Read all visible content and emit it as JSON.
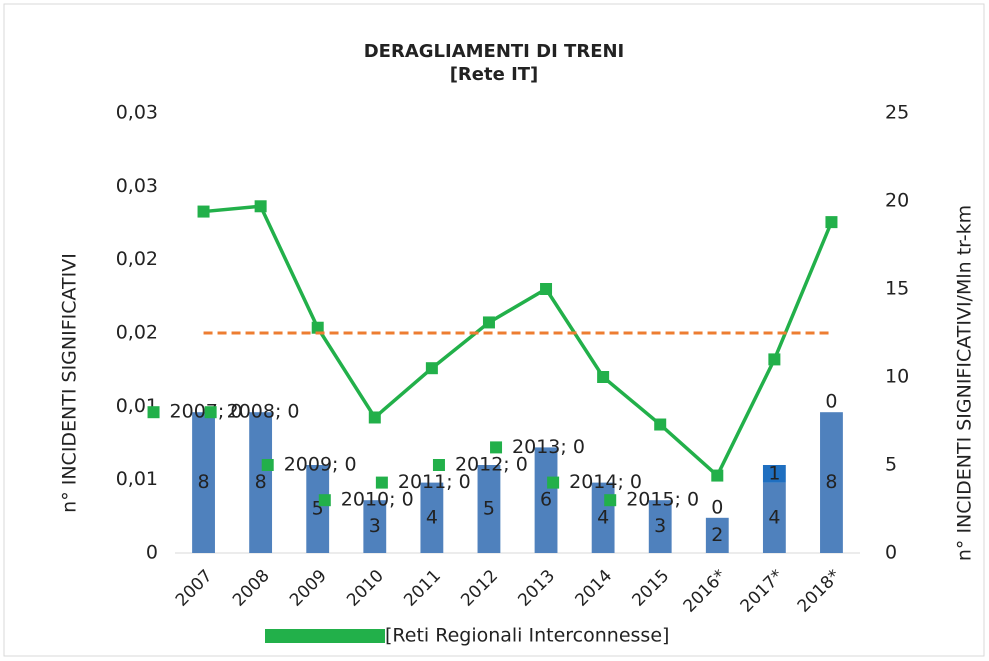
{
  "chart_data": {
    "type": "bar",
    "title": "DERAGLIAMENTI DI TRENI",
    "subtitle": "[Rete IT]",
    "ylabel": "n° INCIDENTI SIGNIFICATIVI",
    "y2label": "n° INCIDENTI SIGNIFICATIVI/Mln tr-km",
    "categories": [
      "2007",
      "2008",
      "2009",
      "2010",
      "2011",
      "2012",
      "2013",
      "2014",
      "2015",
      "2016*",
      "2017*",
      "2018*"
    ],
    "ylim": [
      0,
      0.03
    ],
    "yticks": [
      0,
      {
        "value": 0.005,
        "label": "0,01"
      },
      {
        "value": 0.01,
        "label": "0,01"
      },
      {
        "value": 0.015,
        "label": "0,02"
      },
      {
        "value": 0.02,
        "label": "0,02"
      },
      {
        "value": 0.025,
        "label": "0,03"
      },
      {
        "value": 0.03,
        "label": "0,03"
      }
    ],
    "y2lim": [
      0,
      25
    ],
    "y2ticks": [
      0,
      5,
      10,
      15,
      20,
      25
    ],
    "series": [
      {
        "type": "bar",
        "axis": "y2",
        "color": "#4f81bd",
        "values": [
          8,
          8,
          5,
          3,
          4,
          5,
          6,
          4,
          3,
          2,
          4,
          8
        ]
      },
      {
        "type": "bar",
        "axis": "y2",
        "color": "#1f6fc0",
        "values": [
          null,
          null,
          null,
          null,
          null,
          null,
          null,
          null,
          null,
          0,
          1,
          0
        ]
      },
      {
        "type": "line",
        "axis": "y2",
        "name": "[Reti Regionali Interconnesse]",
        "color": "#22b04a",
        "values": [
          19.4,
          19.7,
          12.8,
          7.7,
          10.5,
          13.1,
          15,
          10,
          7.3,
          4.4,
          11,
          18.8
        ]
      },
      {
        "type": "line",
        "axis": "y2",
        "color": "#ed7d31",
        "dashed": true,
        "values": [
          12.5,
          12.5,
          12.5,
          12.5,
          12.5,
          12.5,
          12.5,
          12.5,
          12.5,
          12.5,
          12.5,
          12.5
        ]
      },
      {
        "type": "scatter",
        "axis": "y2",
        "color": "#22b04a",
        "values": [
          8,
          8,
          5,
          3,
          4,
          5,
          6,
          4,
          3,
          null,
          null,
          null
        ],
        "value_labels": [
          "2007; 0",
          "2008; 0",
          "2009; 0",
          "2010; 0",
          "2011; 0",
          "2012; 0",
          "2013; 0",
          "2014; 0",
          "2015; 0",
          null,
          null,
          null
        ]
      }
    ]
  }
}
